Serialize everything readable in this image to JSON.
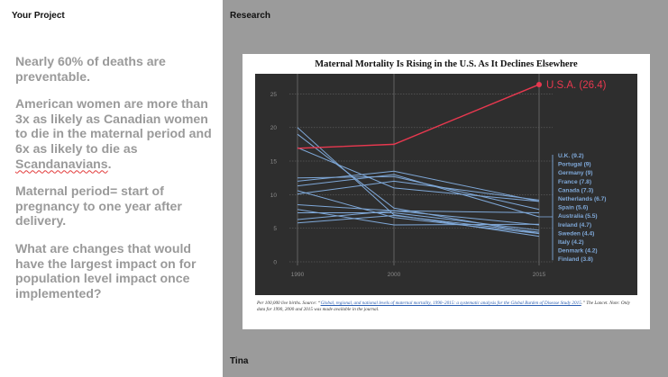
{
  "left_pane": {
    "title": "Your Project",
    "p1": "Nearly 60% of deaths are preventable.",
    "p2_text": "American women are more than 3x as likely as Canadian women to die in the maternal period and 6x as likely to die as ",
    "p2_word": "Scandanavians",
    "p2_end": ".",
    "p3": "Maternal period= start of pregnancy to one year after delivery.",
    "p4": "What are changes that would have the largest impact on for population level impact once implemented?"
  },
  "right_pane": {
    "title": "Research",
    "footer": "Tina"
  },
  "colors": {
    "usa": "#e8384f",
    "others": "#7fa8d8",
    "chart_bg": "#2e2e2e"
  },
  "caption": {
    "a": "Per 100,000 live births. Source: “",
    "link": "Global, regional, and national levels of maternal mortality, 1990–2015: a systematic analysis for the Global Burden of Disease Study 2015",
    "b": ".” The Lancet. Note: Only data for 1990, 2000 and 2015 was made available in the journal."
  },
  "chart_data": {
    "type": "line",
    "title": "Maternal Mortality Is Rising in the U.S. As It Declines Elsewhere",
    "x": [
      1990,
      2000,
      2015
    ],
    "xtick_labels": [
      "1990",
      "2000",
      "2015"
    ],
    "yticks": [
      0,
      5,
      10,
      15,
      20,
      25
    ],
    "ylim": [
      0,
      28
    ],
    "grid": true,
    "highlight": {
      "name": "U.S.A.",
      "label": "U.S.A. (26.4)",
      "values": [
        16.9,
        17.5,
        26.4
      ]
    },
    "series": [
      {
        "name": "U.K.",
        "label": "U.K. (9.2)",
        "values": [
          10.1,
          12.0,
          9.2
        ]
      },
      {
        "name": "Portugal",
        "label": "Portugal (9)",
        "values": [
          17.0,
          11.0,
          9.0
        ]
      },
      {
        "name": "Germany",
        "label": "Germany (9)",
        "values": [
          12.0,
          13.5,
          9.0
        ]
      },
      {
        "name": "France",
        "label": "France (7.8)",
        "values": [
          12.5,
          12.7,
          7.8
        ]
      },
      {
        "name": "Canada",
        "label": "Canada (7.3)",
        "values": [
          6.3,
          7.6,
          7.3
        ]
      },
      {
        "name": "Netherlands",
        "label": "Netherlands (6.7)",
        "values": [
          11.3,
          13.0,
          6.7
        ]
      },
      {
        "name": "Spain",
        "label": "Spain (5.6)",
        "values": [
          7.8,
          5.5,
          5.6
        ]
      },
      {
        "name": "Australia",
        "label": "Australia (5.5)",
        "values": [
          8.5,
          7.6,
          5.5
        ]
      },
      {
        "name": "Ireland",
        "label": "Ireland (4.7)",
        "values": [
          7.3,
          7.3,
          4.7
        ]
      },
      {
        "name": "Sweden",
        "label": "Sweden (4.4)",
        "values": [
          5.8,
          6.9,
          4.4
        ]
      },
      {
        "name": "Italy",
        "label": "Italy (4.2)",
        "values": [
          10.6,
          6.6,
          4.2
        ]
      },
      {
        "name": "Denmark",
        "label": "Denmark (4.2)",
        "values": [
          19.0,
          8.0,
          4.2
        ]
      },
      {
        "name": "Finland",
        "label": "Finland (3.8)",
        "values": [
          20.0,
          7.0,
          3.8
        ]
      }
    ]
  }
}
